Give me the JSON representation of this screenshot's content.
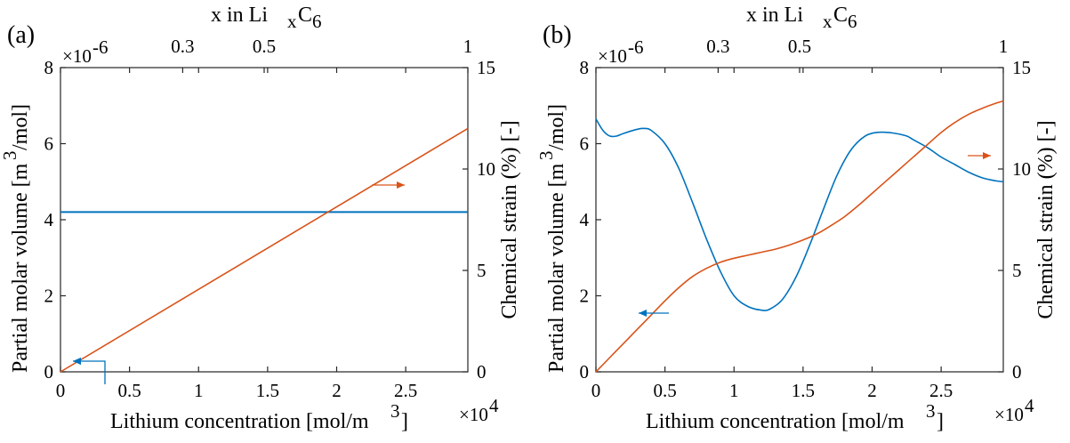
{
  "colors": {
    "left_series": "#0072BD",
    "right_series": "#D95319"
  },
  "chart_data": [
    {
      "type": "line",
      "panel_label": "(a)",
      "top_xlabel": "x in Li",
      "top_xlabel_sub1": "x",
      "top_xlabel_mid": "C",
      "top_xlabel_sub2": "6",
      "top_ticks": [
        {
          "x": 0.3,
          "label": "0.3"
        },
        {
          "x": 0.5,
          "label": "0.5"
        },
        {
          "x": 1,
          "label": "1"
        }
      ],
      "xlabel": "Lithium concentration [mol/m",
      "xlabel_sup": "3",
      "xlabel_end": "]",
      "x_exponent_label": "×10",
      "x_exponent_power": "4",
      "xlim": [
        0,
        2.95
      ],
      "xticks": [
        {
          "v": 0,
          "label": "0"
        },
        {
          "v": 0.5,
          "label": "0.5"
        },
        {
          "v": 1,
          "label": "1"
        },
        {
          "v": 1.5,
          "label": "1.5"
        },
        {
          "v": 2,
          "label": "2"
        },
        {
          "v": 2.5,
          "label": "2.5"
        }
      ],
      "ylabel_left": "Partial molar volume [m",
      "ylabel_left_sup": "3",
      "ylabel_left_end": "/mol]",
      "y_left_exponent_label": "×10",
      "y_left_exponent_power": "-6",
      "ylim_left": [
        0,
        8
      ],
      "yticks_left": [
        {
          "v": 0,
          "label": "0"
        },
        {
          "v": 2,
          "label": "2"
        },
        {
          "v": 4,
          "label": "4"
        },
        {
          "v": 6,
          "label": "6"
        },
        {
          "v": 8,
          "label": "8"
        }
      ],
      "ylabel_right": "Chemical strain (%) [-]",
      "ylim_right": [
        0,
        15
      ],
      "yticks_right": [
        {
          "v": 0,
          "label": "0"
        },
        {
          "v": 5,
          "label": "5"
        },
        {
          "v": 10,
          "label": "10"
        },
        {
          "v": 15,
          "label": "15"
        }
      ],
      "series": [
        {
          "axis": "left",
          "x": [
            0,
            2.95
          ],
          "y": [
            4.2,
            4.2
          ]
        },
        {
          "axis": "right",
          "x": [
            0,
            2.95
          ],
          "y": [
            0,
            12.0
          ]
        }
      ]
    },
    {
      "type": "line",
      "panel_label": "(b)",
      "top_xlabel": "x in Li",
      "top_xlabel_sub1": "x",
      "top_xlabel_mid": "C",
      "top_xlabel_sub2": "6",
      "top_ticks": [
        {
          "x": 0.3,
          "label": "0.3"
        },
        {
          "x": 0.5,
          "label": "0.5"
        },
        {
          "x": 1,
          "label": "1"
        }
      ],
      "xlabel": "Lithium concentration [mol/m",
      "xlabel_sup": "3",
      "xlabel_end": "]",
      "x_exponent_label": "×10",
      "x_exponent_power": "4",
      "xlim": [
        0,
        2.95
      ],
      "xticks": [
        {
          "v": 0,
          "label": "0"
        },
        {
          "v": 0.5,
          "label": "0.5"
        },
        {
          "v": 1,
          "label": "1"
        },
        {
          "v": 1.5,
          "label": "1.5"
        },
        {
          "v": 2,
          "label": "2"
        },
        {
          "v": 2.5,
          "label": "2.5"
        }
      ],
      "ylabel_left": "Partial molar volume [m",
      "ylabel_left_sup": "3",
      "ylabel_left_end": "/mol]",
      "y_left_exponent_label": "×10",
      "y_left_exponent_power": "-6",
      "ylim_left": [
        0,
        8
      ],
      "yticks_left": [
        {
          "v": 0,
          "label": "0"
        },
        {
          "v": 2,
          "label": "2"
        },
        {
          "v": 4,
          "label": "4"
        },
        {
          "v": 6,
          "label": "6"
        },
        {
          "v": 8,
          "label": "8"
        }
      ],
      "ylabel_right": "Chemical strain (%) [-]",
      "ylim_right": [
        0,
        15
      ],
      "yticks_right": [
        {
          "v": 0,
          "label": "0"
        },
        {
          "v": 5,
          "label": "5"
        },
        {
          "v": 10,
          "label": "10"
        },
        {
          "v": 15,
          "label": "15"
        }
      ],
      "series": [
        {
          "axis": "left",
          "x": [
            0,
            0.05,
            0.1,
            0.15,
            0.2,
            0.3,
            0.35,
            0.4,
            0.5,
            0.6,
            0.7,
            0.8,
            0.9,
            1.0,
            1.1,
            1.2,
            1.26,
            1.35,
            1.45,
            1.55,
            1.65,
            1.75,
            1.85,
            1.95,
            2.05,
            2.15,
            2.25,
            2.3,
            2.4,
            2.5,
            2.6,
            2.7,
            2.8,
            2.9,
            2.95
          ],
          "y": [
            6.65,
            6.35,
            6.2,
            6.2,
            6.27,
            6.38,
            6.4,
            6.35,
            6.0,
            5.35,
            4.45,
            3.5,
            2.65,
            2.0,
            1.72,
            1.62,
            1.65,
            1.9,
            2.5,
            3.35,
            4.3,
            5.2,
            5.85,
            6.2,
            6.3,
            6.28,
            6.2,
            6.1,
            5.9,
            5.65,
            5.45,
            5.25,
            5.1,
            5.02,
            5.0
          ]
        },
        {
          "axis": "right",
          "x": [
            0,
            0.1,
            0.2,
            0.3,
            0.4,
            0.5,
            0.6,
            0.7,
            0.8,
            0.9,
            1.0,
            1.1,
            1.2,
            1.3,
            1.4,
            1.5,
            1.6,
            1.7,
            1.8,
            1.9,
            2.0,
            2.1,
            2.2,
            2.3,
            2.4,
            2.5,
            2.6,
            2.7,
            2.8,
            2.9,
            2.95
          ],
          "y": [
            0,
            0.7,
            1.4,
            2.1,
            2.8,
            3.5,
            4.15,
            4.7,
            5.1,
            5.4,
            5.6,
            5.75,
            5.9,
            6.05,
            6.25,
            6.5,
            6.8,
            7.2,
            7.65,
            8.2,
            8.8,
            9.4,
            10.0,
            10.6,
            11.2,
            11.8,
            12.3,
            12.7,
            13.0,
            13.25,
            13.35
          ]
        }
      ]
    }
  ]
}
